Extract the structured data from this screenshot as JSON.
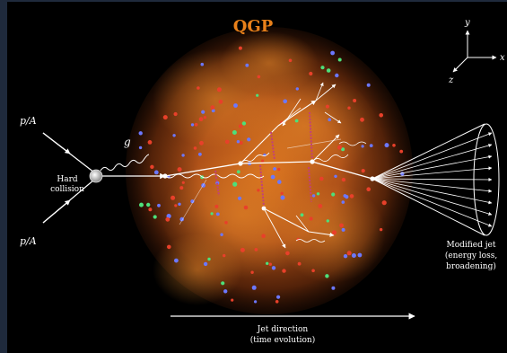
{
  "labels": {
    "title": "QGP",
    "incoming_top": "p/A",
    "incoming_bottom": "p/A",
    "gluon": "g",
    "hard_collision_line1": "Hard",
    "hard_collision_line2": "collision",
    "jet_line1": "Modified jet",
    "jet_line2": "(energy loss,",
    "jet_line3": "broadening)",
    "direction_line1": "Jet direction",
    "direction_line2": "(time evolution)",
    "axis_x": "x",
    "axis_y": "y",
    "axis_z": "z"
  },
  "colors": {
    "frame": "#1f2a3c",
    "background": "#000000",
    "title": "#e8801a",
    "plasma_core": "#c8621a",
    "plasma_edge": "#5a2508",
    "particle_red": "#e8402a",
    "particle_blue": "#6c78ff",
    "particle_green": "#4de07a",
    "gluon_links": "#c2407a",
    "lines": "#ffffff"
  },
  "icons": {
    "collision": "collision-point-icon",
    "cone": "jet-cone-icon",
    "axes": "coordinate-axes-icon"
  }
}
